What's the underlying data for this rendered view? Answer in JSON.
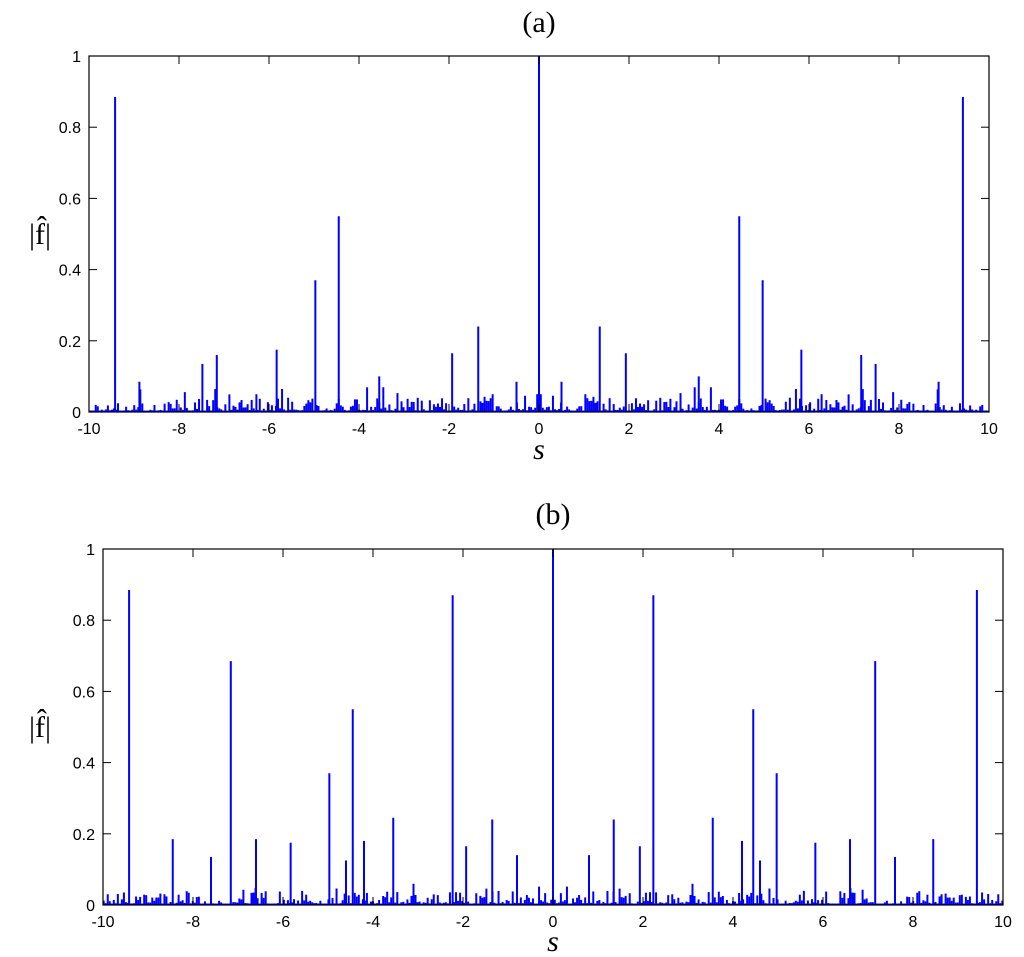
{
  "chart_data": [
    {
      "type": "bar",
      "title": "(a)",
      "xlabel": "s",
      "ylabel": "|f̂|",
      "xlim": [
        -10,
        10
      ],
      "ylim": [
        0,
        1
      ],
      "xticks": [
        "-10",
        "-8",
        "-6",
        "-4",
        "-2",
        "0",
        "2",
        "4",
        "6",
        "8",
        "10"
      ],
      "yticks": [
        "0",
        "0.2",
        "0.4",
        "0.6",
        "0.8",
        "1"
      ],
      "color": "#0000ff",
      "grid": false,
      "spikes": {
        "x": [
          -9.42,
          -8.88,
          -7.48,
          -7.16,
          -6.28,
          -5.83,
          -4.97,
          -4.45,
          -3.55,
          -1.93,
          -1.35,
          -0.5,
          0.0,
          0.5,
          1.35,
          1.93,
          3.55,
          4.45,
          4.97,
          5.83,
          6.28,
          7.16,
          7.48,
          8.88,
          9.42
        ],
        "y": [
          0.885,
          0.085,
          0.135,
          0.16,
          0.05,
          0.175,
          0.37,
          0.55,
          0.1,
          0.165,
          0.24,
          0.085,
          1.0,
          0.085,
          0.24,
          0.165,
          0.1,
          0.55,
          0.37,
          0.175,
          0.05,
          0.16,
          0.135,
          0.085,
          0.885
        ]
      }
    },
    {
      "type": "bar",
      "title": "(b)",
      "xlabel": "s",
      "ylabel": "|f̂|",
      "xlim": [
        -10,
        10
      ],
      "ylim": [
        0,
        1
      ],
      "xticks": [
        "-10",
        "-8",
        "-6",
        "-4",
        "-2",
        "0",
        "2",
        "4",
        "6",
        "8",
        "10"
      ],
      "yticks": [
        "0",
        "0.2",
        "0.4",
        "0.6",
        "0.8",
        "1"
      ],
      "color": "#0000ff",
      "grid": false,
      "spikes": {
        "x": [
          -9.42,
          -8.45,
          -7.6,
          -7.16,
          -6.6,
          -5.83,
          -4.97,
          -4.6,
          -4.45,
          -4.2,
          -3.55,
          -2.23,
          -1.93,
          -1.35,
          -0.8,
          0.0,
          0.8,
          1.35,
          1.93,
          2.23,
          3.55,
          4.2,
          4.45,
          4.6,
          4.97,
          5.83,
          6.6,
          7.16,
          7.6,
          8.45,
          9.42
        ],
        "y": [
          0.885,
          0.185,
          0.135,
          0.685,
          0.185,
          0.175,
          0.37,
          0.125,
          0.55,
          0.18,
          0.245,
          0.87,
          0.165,
          0.24,
          0.14,
          1.0,
          0.14,
          0.24,
          0.165,
          0.87,
          0.245,
          0.18,
          0.55,
          0.125,
          0.37,
          0.175,
          0.185,
          0.685,
          0.135,
          0.185,
          0.885
        ]
      }
    }
  ]
}
